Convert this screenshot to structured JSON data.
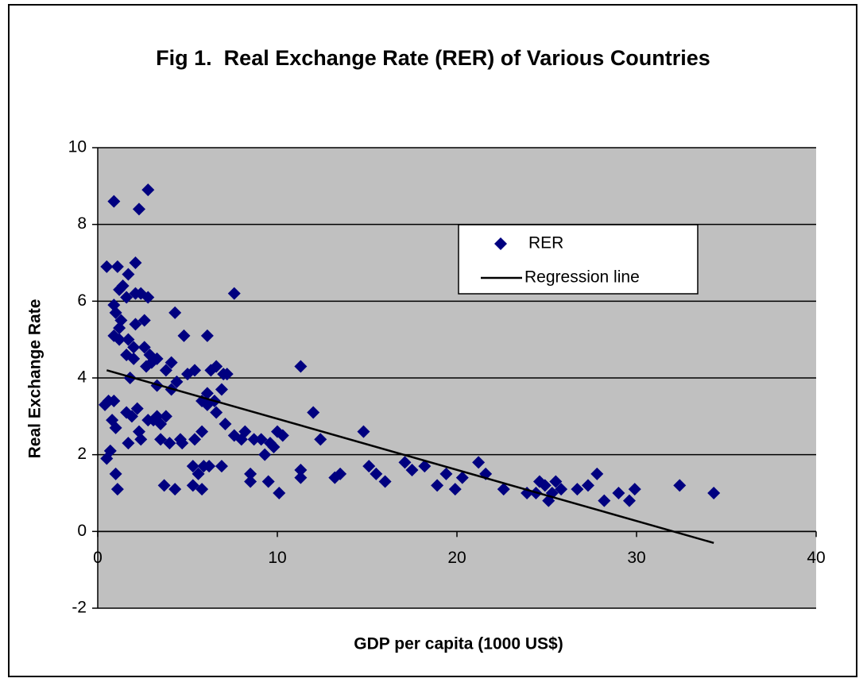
{
  "chart_data": {
    "type": "scatter",
    "title": "Fig 1.  Real Exchange Rate (RER) of Various Countries",
    "x_label": "GDP per capita (1000 US$)",
    "y_label": "Real Exchange Rate",
    "xlim": [
      0,
      40
    ],
    "xticks": [
      0,
      10,
      20,
      30,
      40
    ],
    "ylim": [
      -2,
      10
    ],
    "yticks": [
      -2,
      0,
      2,
      4,
      6,
      8,
      10
    ],
    "grid": true,
    "background": "#c0c0c0",
    "legend": "upper right",
    "series": [
      {
        "name": "RER",
        "type": "scatter",
        "color": "#000080",
        "x": [
          0.9,
          2.3,
          2.8,
          0.5,
          1.1,
          2.1,
          1.7,
          7.6,
          2.8,
          2.4,
          1.2,
          1.4,
          0.9,
          1.6,
          2.1,
          1.0,
          1.3,
          1.2,
          2.1,
          2.6,
          4.3,
          4.8,
          6.1,
          0.9,
          1.2,
          1.7,
          2.0,
          2.6,
          1.6,
          2.0,
          2.9,
          3.0,
          2.7,
          3.3,
          3.8,
          4.1,
          5.4,
          5.0,
          6.3,
          6.6,
          7.0,
          7.2,
          11.3,
          1.8,
          4.4,
          3.3,
          4.1,
          6.1,
          6.9,
          5.8,
          6.5,
          6.1,
          0.4,
          0.6,
          0.9,
          2.2,
          1.6,
          1.9,
          2.8,
          3.3,
          3.8,
          3.1,
          3.5,
          3.5,
          4.0,
          2.3,
          2.4,
          0.8,
          1.0,
          0.7,
          1.7,
          6.6,
          7.1,
          7.6,
          8.0,
          8.2,
          8.7,
          9.1,
          9.6,
          10.0,
          10.3,
          12.0,
          12.4,
          14.8,
          9.3,
          9.8,
          4.6,
          5.4,
          4.7,
          5.8,
          0.5,
          1.0,
          1.1,
          3.7,
          4.3,
          5.3,
          5.6,
          5.8,
          5.3,
          5.9,
          6.2,
          6.9,
          8.5,
          8.5,
          9.5,
          10.1,
          11.3,
          11.3,
          13.2,
          13.5,
          15.1,
          15.5,
          16.0,
          17.1,
          17.5,
          18.2,
          18.9,
          19.4,
          19.9,
          20.3,
          21.2,
          21.6,
          22.6,
          23.9,
          24.4,
          24.6,
          24.9,
          25.1,
          25.3,
          25.5,
          25.8,
          26.7,
          27.3,
          27.8,
          28.2,
          29.0,
          29.6,
          29.9,
          32.4,
          34.3
        ],
        "values": [
          8.6,
          8.4,
          8.9,
          6.9,
          6.9,
          7.0,
          6.7,
          6.2,
          6.1,
          6.2,
          6.3,
          6.4,
          5.9,
          6.1,
          6.2,
          5.7,
          5.5,
          5.3,
          5.4,
          5.5,
          5.7,
          5.1,
          5.1,
          5.1,
          5.0,
          5.0,
          4.8,
          4.8,
          4.6,
          4.5,
          4.6,
          4.4,
          4.3,
          4.5,
          4.2,
          4.4,
          4.2,
          4.1,
          4.2,
          4.3,
          4.1,
          4.1,
          4.3,
          4.0,
          3.9,
          3.8,
          3.7,
          3.6,
          3.7,
          3.4,
          3.4,
          3.3,
          3.3,
          3.4,
          3.4,
          3.2,
          3.1,
          3.0,
          2.9,
          3.0,
          3.0,
          2.9,
          2.8,
          2.4,
          2.3,
          2.6,
          2.4,
          2.9,
          2.7,
          2.1,
          2.3,
          3.1,
          2.8,
          2.5,
          2.4,
          2.6,
          2.4,
          2.4,
          2.3,
          2.6,
          2.5,
          3.1,
          2.4,
          2.6,
          2.0,
          2.2,
          2.4,
          2.4,
          2.3,
          2.6,
          1.9,
          1.5,
          1.1,
          1.2,
          1.1,
          1.2,
          1.5,
          1.1,
          1.7,
          1.7,
          1.7,
          1.7,
          1.5,
          1.3,
          1.3,
          1.0,
          1.6,
          1.4,
          1.4,
          1.5,
          1.7,
          1.5,
          1.3,
          1.8,
          1.6,
          1.7,
          1.2,
          1.5,
          1.1,
          1.4,
          1.8,
          1.5,
          1.1,
          1.0,
          1.0,
          1.3,
          1.2,
          0.8,
          1.0,
          1.3,
          1.1,
          1.1,
          1.2,
          1.5,
          0.8,
          1.0,
          0.8,
          1.1,
          1.2,
          1.0
        ]
      },
      {
        "name": "Regression line",
        "type": "line",
        "color": "#000000",
        "x": [
          0.5,
          34.3
        ],
        "values": [
          4.2,
          -0.3
        ]
      }
    ]
  }
}
